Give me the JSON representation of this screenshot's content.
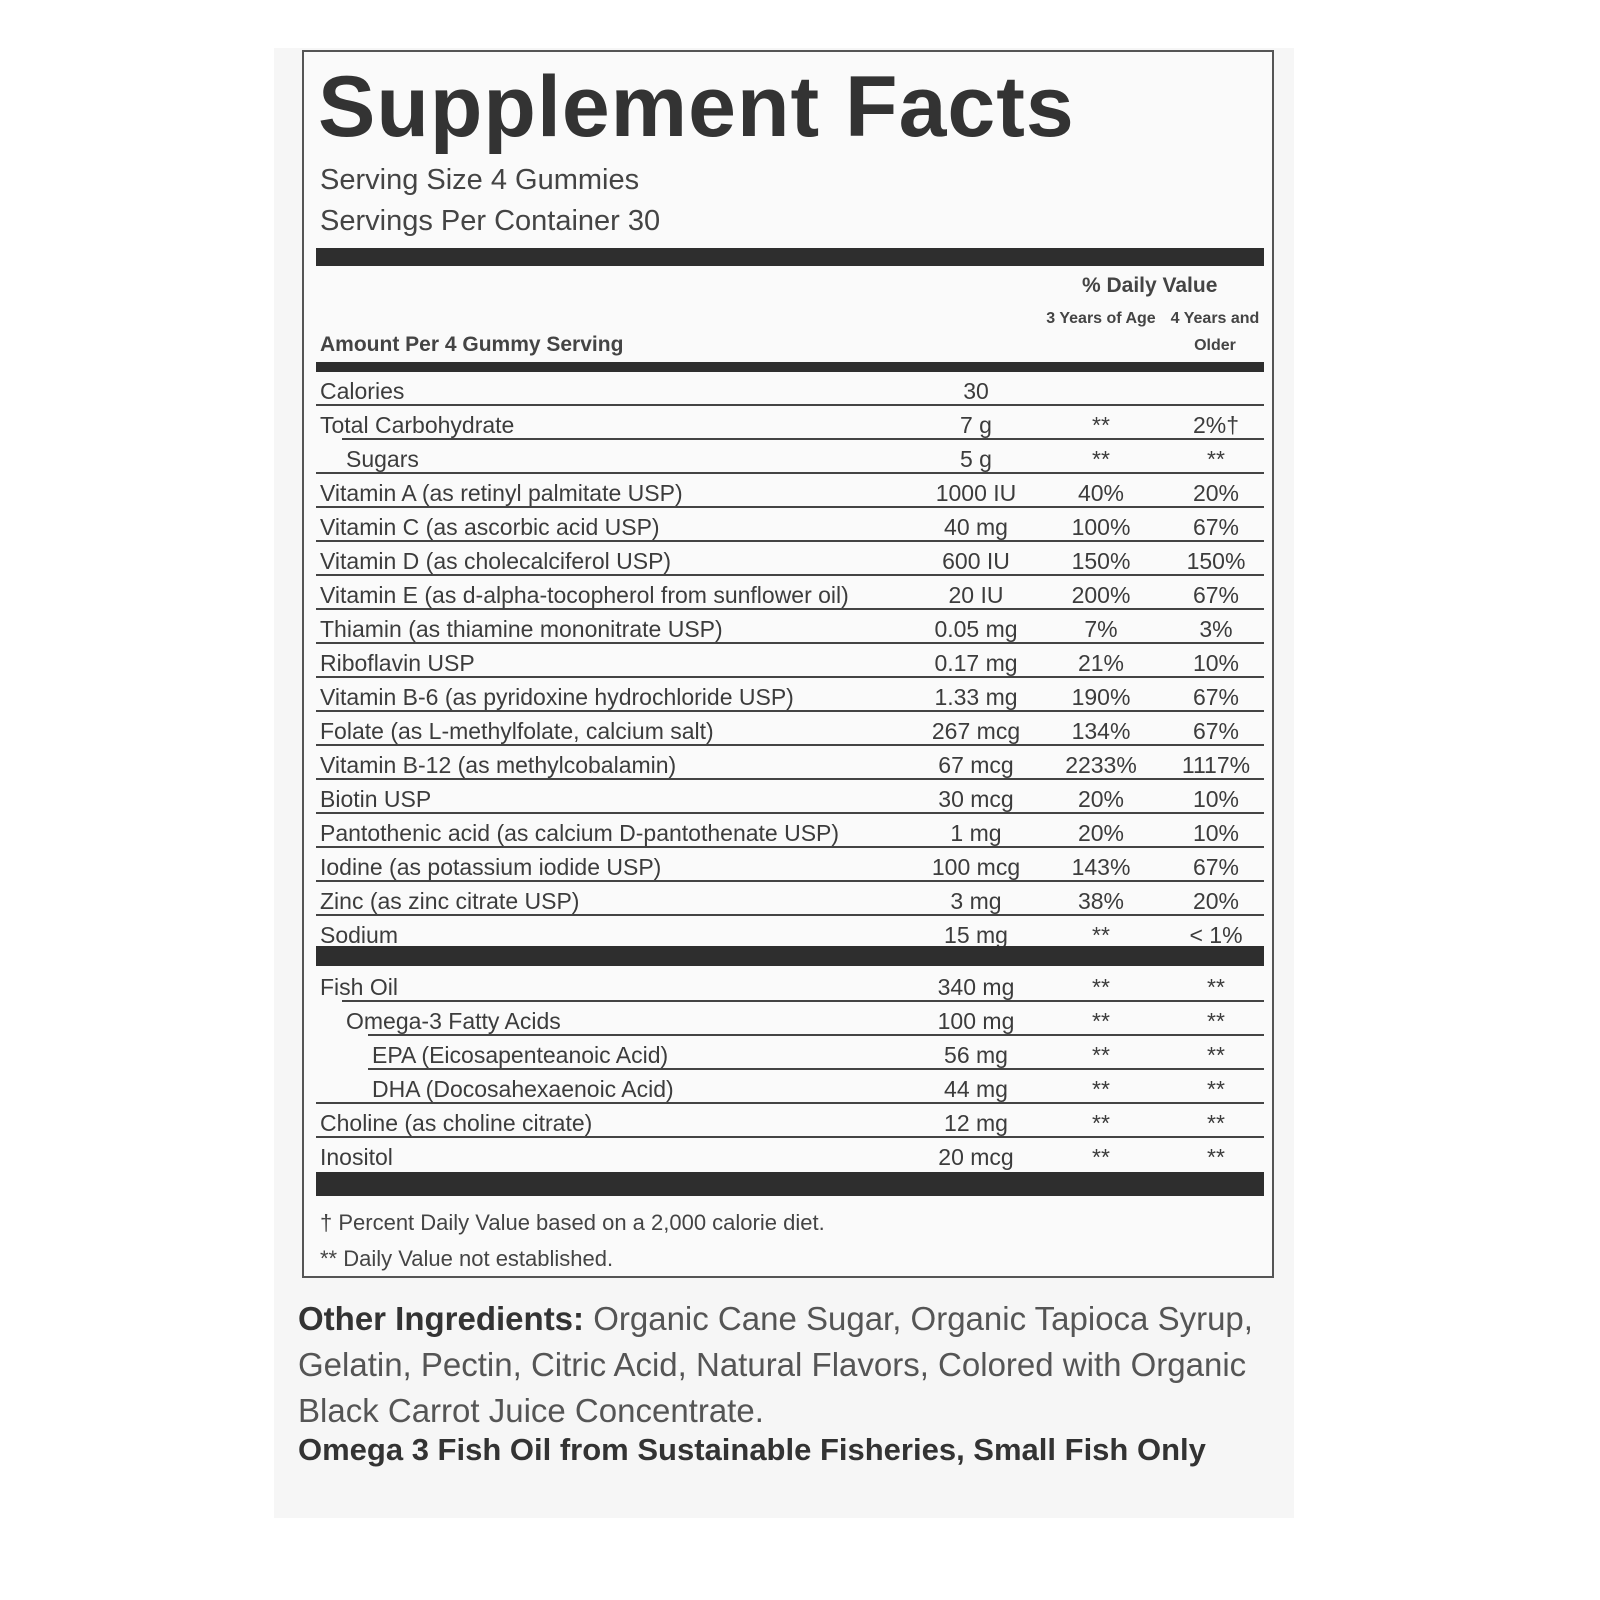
{
  "title": "Supplement Facts",
  "serving_size": "Serving Size 4 Gummies",
  "servings_per_container": "Servings Per Container 30",
  "header": {
    "amount_per": "Amount Per 4 Gummy Serving",
    "daily_value": "% Daily Value",
    "col1": "3 Years of Age",
    "col2": "4 Years and Older"
  },
  "section1": [
    {
      "name": "Calories",
      "amount": "30",
      "dv1": "",
      "dv2": "",
      "indent": 0
    },
    {
      "name": "Total Carbohydrate",
      "amount": "7 g",
      "dv1": "**",
      "dv2": "2%†",
      "indent": 0
    },
    {
      "name": "Sugars",
      "amount": "5 g",
      "dv1": "**",
      "dv2": "**",
      "indent": 1
    },
    {
      "name": "Vitamin A (as retinyl palmitate USP)",
      "amount": "1000 IU",
      "dv1": "40%",
      "dv2": "20%",
      "indent": 0
    },
    {
      "name": "Vitamin C (as ascorbic acid USP)",
      "amount": "40 mg",
      "dv1": "100%",
      "dv2": "67%",
      "indent": 0
    },
    {
      "name": "Vitamin D (as cholecalciferol USP)",
      "amount": "600 IU",
      "dv1": "150%",
      "dv2": "150%",
      "indent": 0
    },
    {
      "name": "Vitamin E (as d-alpha-tocopherol from sunflower oil)",
      "amount": "20 IU",
      "dv1": "200%",
      "dv2": "67%",
      "indent": 0
    },
    {
      "name": "Thiamin (as thiamine mononitrate USP)",
      "amount": "0.05 mg",
      "dv1": "7%",
      "dv2": "3%",
      "indent": 0
    },
    {
      "name": "Riboflavin USP",
      "amount": "0.17 mg",
      "dv1": "21%",
      "dv2": "10%",
      "indent": 0
    },
    {
      "name": "Vitamin B-6 (as pyridoxine hydrochloride USP)",
      "amount": "1.33 mg",
      "dv1": "190%",
      "dv2": "67%",
      "indent": 0
    },
    {
      "name": "Folate (as L-methylfolate, calcium salt)",
      "amount": "267 mcg",
      "dv1": "134%",
      "dv2": "67%",
      "indent": 0
    },
    {
      "name": "Vitamin B-12 (as methylcobalamin)",
      "amount": "67 mcg",
      "dv1": "2233%",
      "dv2": "1117%",
      "indent": 0
    },
    {
      "name": "Biotin USP",
      "amount": "30 mcg",
      "dv1": "20%",
      "dv2": "10%",
      "indent": 0
    },
    {
      "name": "Pantothenic acid (as calcium D-pantothenate USP)",
      "amount": "1 mg",
      "dv1": "20%",
      "dv2": "10%",
      "indent": 0
    },
    {
      "name": "Iodine (as potassium iodide USP)",
      "amount": "100 mcg",
      "dv1": "143%",
      "dv2": "67%",
      "indent": 0
    },
    {
      "name": "Zinc (as zinc citrate USP)",
      "amount": "3 mg",
      "dv1": "38%",
      "dv2": "20%",
      "indent": 0
    },
    {
      "name": "Sodium",
      "amount": "15 mg",
      "dv1": "**",
      "dv2": "< 1%",
      "indent": 0
    }
  ],
  "section2": [
    {
      "name": "Fish Oil",
      "amount": "340 mg",
      "dv1": "**",
      "dv2": "**",
      "indent": 0
    },
    {
      "name": "Omega-3 Fatty Acids",
      "amount": "100 mg",
      "dv1": "**",
      "dv2": "**",
      "indent": 1
    },
    {
      "name": "EPA (Eicosapenteanoic Acid)",
      "amount": "56 mg",
      "dv1": "**",
      "dv2": "**",
      "indent": 2
    },
    {
      "name": "DHA (Docosahexaenoic Acid)",
      "amount": "44 mg",
      "dv1": "**",
      "dv2": "**",
      "indent": 2
    },
    {
      "name": "Choline (as choline citrate)",
      "amount": "12 mg",
      "dv1": "**",
      "dv2": "**",
      "indent": 0
    },
    {
      "name": "Inositol",
      "amount": "20 mcg",
      "dv1": "**",
      "dv2": "**",
      "indent": 0
    }
  ],
  "footnotes": [
    "† Percent Daily Value based on a 2,000 calorie diet.",
    "** Daily Value not established."
  ],
  "other_ingredients": {
    "label": "Other Ingredients:",
    "text": " Organic Cane Sugar, Organic Tapioca Syrup, Gelatin, Pectin, Citric Acid, Natural Flavors, Colored with Organic Black Carrot Juice Concentrate."
  },
  "omega_note": "Omega 3 Fish Oil from Sustainable Fisheries, Small Fish Only"
}
